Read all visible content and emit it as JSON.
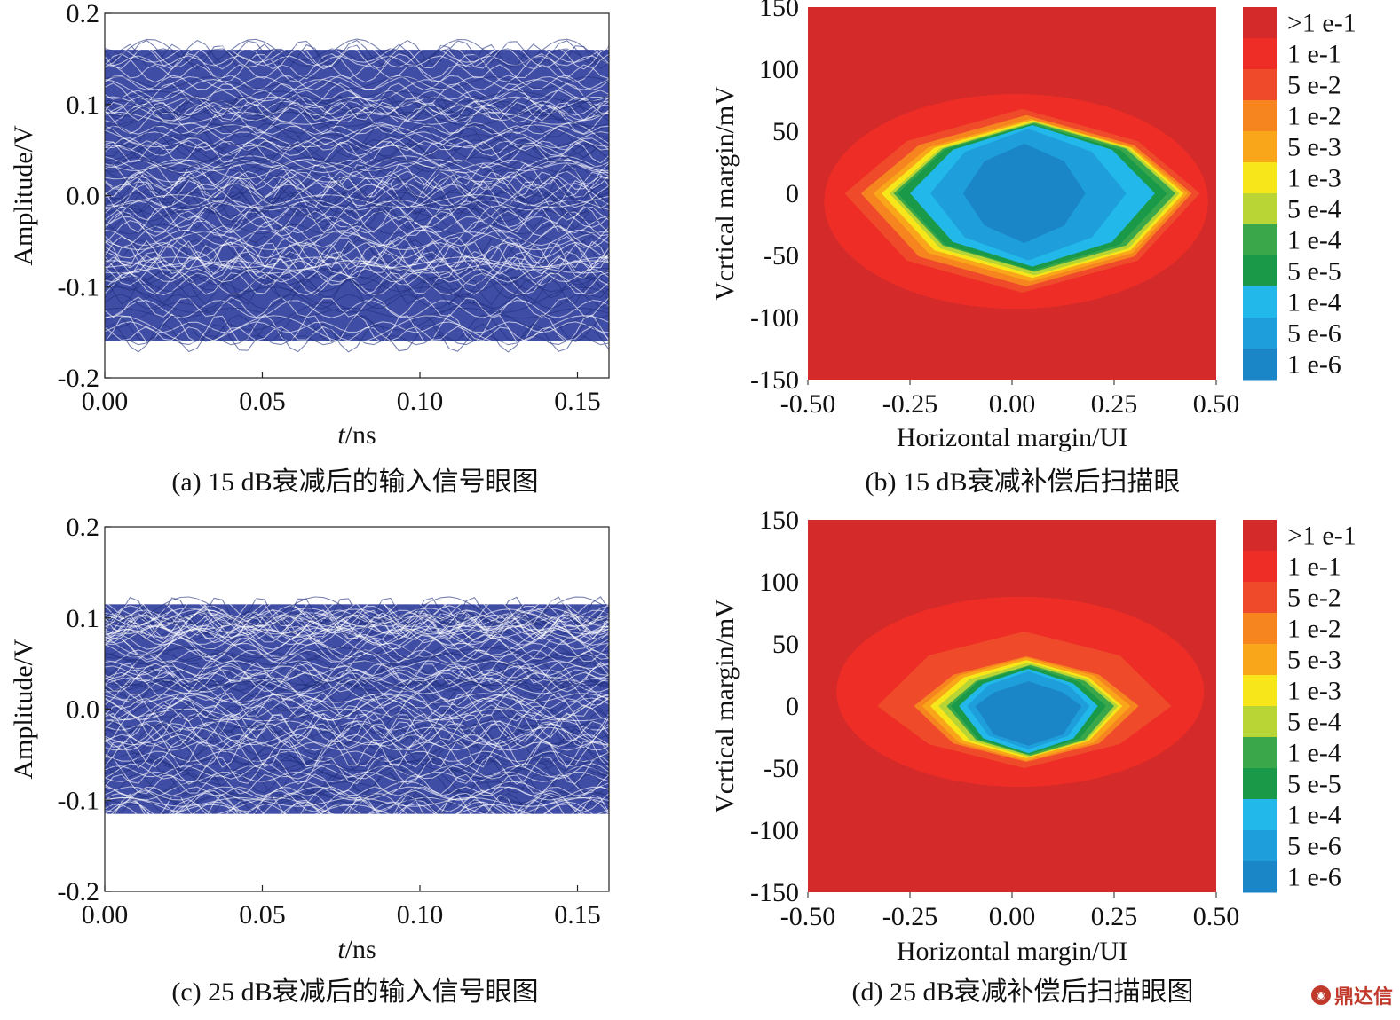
{
  "chart_data": [
    {
      "id": "a",
      "type": "line",
      "caption": "(a) 15 dB衰减后的输入信号眼图",
      "xlabel_italic": "t",
      "xlabel_rest": "/ns",
      "ylabel": "Amplitude/V",
      "xlim": [
        0.0,
        0.16
      ],
      "ylim": [
        -0.2,
        0.2
      ],
      "xticks": [
        "0.00",
        "0.05",
        "0.10",
        "0.15"
      ],
      "xtick_values": [
        0.0,
        0.05,
        0.1,
        0.15
      ],
      "yticks": [
        "0.2",
        "0.1",
        "0.0",
        "-0.1",
        "-0.2"
      ],
      "ytick_values": [
        0.2,
        0.1,
        0.0,
        -0.1,
        -0.2
      ],
      "amplitude": 0.16,
      "trace_color": "#2b3a9b"
    },
    {
      "id": "b",
      "type": "heatmap",
      "caption": "(b) 15 dB衰减补偿后扫描眼",
      "xlabel": "Horizontal margin/UI",
      "ylabel": "Vcrtical margin/mV",
      "xlim": [
        -0.5,
        0.5
      ],
      "ylim": [
        -150,
        150
      ],
      "xticks": [
        "-0.50",
        "-0.25",
        "0.00",
        "0.25",
        "0.50"
      ],
      "xtick_values": [
        -0.5,
        -0.25,
        0.0,
        0.25,
        0.5
      ],
      "yticks": [
        "150",
        "100",
        "50",
        "0",
        "-50",
        "-100",
        "-150"
      ],
      "ytick_values": [
        150,
        100,
        50,
        0,
        -50,
        -100,
        -150
      ],
      "contours": [
        {
          "x": [
            -0.46,
            0.48
          ],
          "y": [
            -93,
            80
          ],
          "level": 1
        },
        {
          "x": [
            -0.41,
            0.46
          ],
          "y": [
            -80,
            68
          ],
          "level": 2
        },
        {
          "x": [
            -0.37,
            0.44
          ],
          "y": [
            -75,
            63
          ],
          "level": 3
        },
        {
          "x": [
            -0.34,
            0.43
          ],
          "y": [
            -71,
            60
          ],
          "level": 4
        },
        {
          "x": [
            -0.32,
            0.42
          ],
          "y": [
            -68,
            59
          ],
          "level": 5
        },
        {
          "x": [
            -0.3,
            0.41
          ],
          "y": [
            -66,
            58
          ],
          "level": 6
        },
        {
          "x": [
            -0.29,
            0.4
          ],
          "y": [
            -63,
            57
          ],
          "level": 7
        },
        {
          "x": [
            -0.28,
            0.38
          ],
          "y": [
            -62,
            56
          ],
          "level": 8
        },
        {
          "x": [
            -0.25,
            0.35
          ],
          "y": [
            -59,
            55
          ],
          "level": 9
        },
        {
          "x": [
            -0.2,
            0.28
          ],
          "y": [
            -54,
            52
          ],
          "level": 10
        },
        {
          "x": [
            -0.12,
            0.18
          ],
          "y": [
            -40,
            40
          ],
          "level": 11
        }
      ]
    },
    {
      "id": "c",
      "type": "line",
      "caption": "(c) 25 dB衰减后的输入信号眼图",
      "xlabel_italic": "t",
      "xlabel_rest": "/ns",
      "ylabel": "Amplitude/V",
      "xlim": [
        0.0,
        0.16
      ],
      "ylim": [
        -0.2,
        0.2
      ],
      "xticks": [
        "0.00",
        "0.05",
        "0.10",
        "0.15"
      ],
      "xtick_values": [
        0.0,
        0.05,
        0.1,
        0.15
      ],
      "yticks": [
        "0.2",
        "0.1",
        "0.0",
        "-0.1",
        "-0.2"
      ],
      "ytick_values": [
        0.2,
        0.1,
        0.0,
        -0.1,
        -0.2
      ],
      "amplitude": 0.115,
      "trace_color": "#2b3a9b"
    },
    {
      "id": "d",
      "type": "heatmap",
      "caption": "(d) 25 dB衰减补偿后扫描眼图",
      "xlabel": "Horizontal margin/UI",
      "ylabel": "Vcrtical margin/mV",
      "xlim": [
        -0.5,
        0.5
      ],
      "ylim": [
        -150,
        150
      ],
      "xticks": [
        "-0.50",
        "-0.25",
        "0.00",
        "0.25",
        "0.50"
      ],
      "xtick_values": [
        -0.5,
        -0.25,
        0.0,
        0.25,
        0.5
      ],
      "yticks": [
        "150",
        "100",
        "50",
        "0",
        "-50",
        "-100",
        "-150"
      ],
      "ytick_values": [
        150,
        100,
        50,
        0,
        -50,
        -100,
        -150
      ],
      "contours": [
        {
          "x": [
            -0.43,
            0.47
          ],
          "y": [
            -65,
            88
          ],
          "level": 1
        },
        {
          "x": [
            -0.33,
            0.39
          ],
          "y": [
            -50,
            60
          ],
          "level": 2
        },
        {
          "x": [
            -0.24,
            0.31
          ],
          "y": [
            -45,
            40
          ],
          "level": 3
        },
        {
          "x": [
            -0.22,
            0.29
          ],
          "y": [
            -44,
            39
          ],
          "level": 4
        },
        {
          "x": [
            -0.2,
            0.27
          ],
          "y": [
            -42,
            37
          ],
          "level": 5
        },
        {
          "x": [
            -0.18,
            0.26
          ],
          "y": [
            -41,
            35
          ],
          "level": 6
        },
        {
          "x": [
            -0.16,
            0.25
          ],
          "y": [
            -40,
            33
          ],
          "level": 7
        },
        {
          "x": [
            -0.15,
            0.23
          ],
          "y": [
            -39,
            32
          ],
          "level": 8
        },
        {
          "x": [
            -0.13,
            0.21
          ],
          "y": [
            -38,
            30
          ],
          "level": 9
        },
        {
          "x": [
            -0.11,
            0.19
          ],
          "y": [
            -35,
            28
          ],
          "level": 10
        },
        {
          "x": [
            -0.09,
            0.17
          ],
          "y": [
            -32,
            20
          ],
          "level": 11
        }
      ]
    }
  ],
  "colorbars": [
    {
      "labels": [
        ">1 e-1",
        "1 e-1",
        "5 e-2",
        "1 e-2",
        "5 e-3",
        "1 e-3",
        "5 e-4",
        "1 e-4",
        "5 e-5",
        "1 e-4",
        "5 e-6",
        "1 e-6"
      ]
    },
    {
      "labels": [
        ">1 e-1",
        "1 e-1",
        "5 e-2",
        "1 e-2",
        "5 e-3",
        "1 e-3",
        "5 e-4",
        "1 e-4",
        "5 e-5",
        "1 e-4",
        "5 e-6",
        "1 e-6"
      ]
    }
  ],
  "colors": {
    "levels": [
      "#d42a2a",
      "#ee2e26",
      "#ef4a2a",
      "#f6851f",
      "#f9a61a",
      "#f7e61a",
      "#b8d435",
      "#3aa84a",
      "#1a9a48",
      "#22b8ea",
      "#1e9fdc",
      "#1a86c8"
    ],
    "trace": "#2b3a9b"
  },
  "watermark": {
    "text": "鼎达信"
  }
}
